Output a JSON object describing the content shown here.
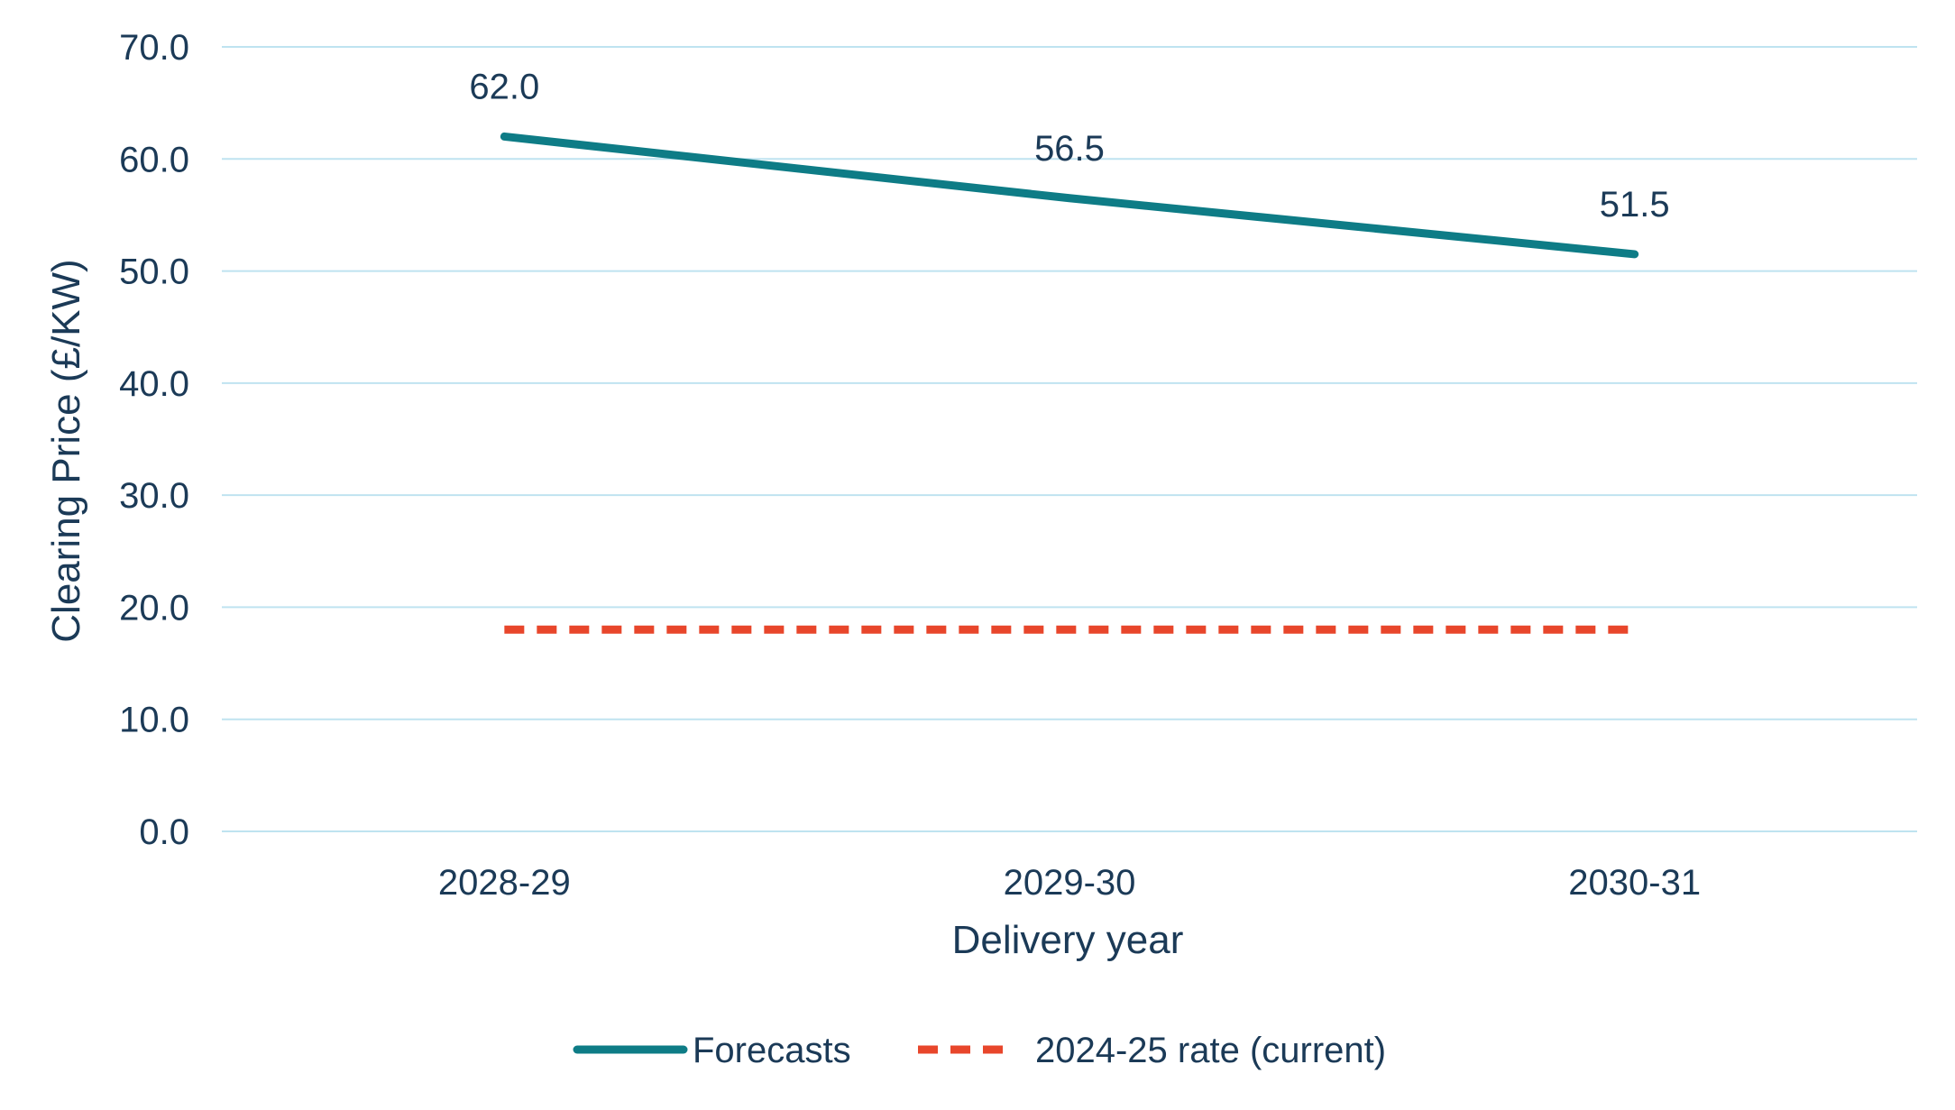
{
  "chart_data": {
    "type": "line",
    "title": "",
    "xlabel": "Delivery year",
    "ylabel": "Clearing Price (£/KW)",
    "categories": [
      "2028-29",
      "2029-30",
      "2030-31"
    ],
    "ylim": [
      0,
      70
    ],
    "y_ticks": [
      0,
      10,
      20,
      30,
      40,
      50,
      60,
      70
    ],
    "y_tick_labels": [
      "0.0",
      "10.0",
      "20.0",
      "30.0",
      "40.0",
      "50.0",
      "60.0",
      "70.0"
    ],
    "grid": true,
    "legend_position": "bottom",
    "series": [
      {
        "name": "Forecasts",
        "values": [
          62.0,
          56.5,
          51.5
        ],
        "data_labels": [
          "62.0",
          "56.5",
          "51.5"
        ],
        "style": "solid",
        "color": "#0e7c86"
      },
      {
        "name": "2024-25 rate (current)",
        "values": [
          18.0,
          18.0,
          18.0
        ],
        "style": "dashed",
        "color": "#e8462b"
      }
    ],
    "colors": {
      "gridline": "#bfe3f0",
      "text": "#1b3a57"
    }
  }
}
